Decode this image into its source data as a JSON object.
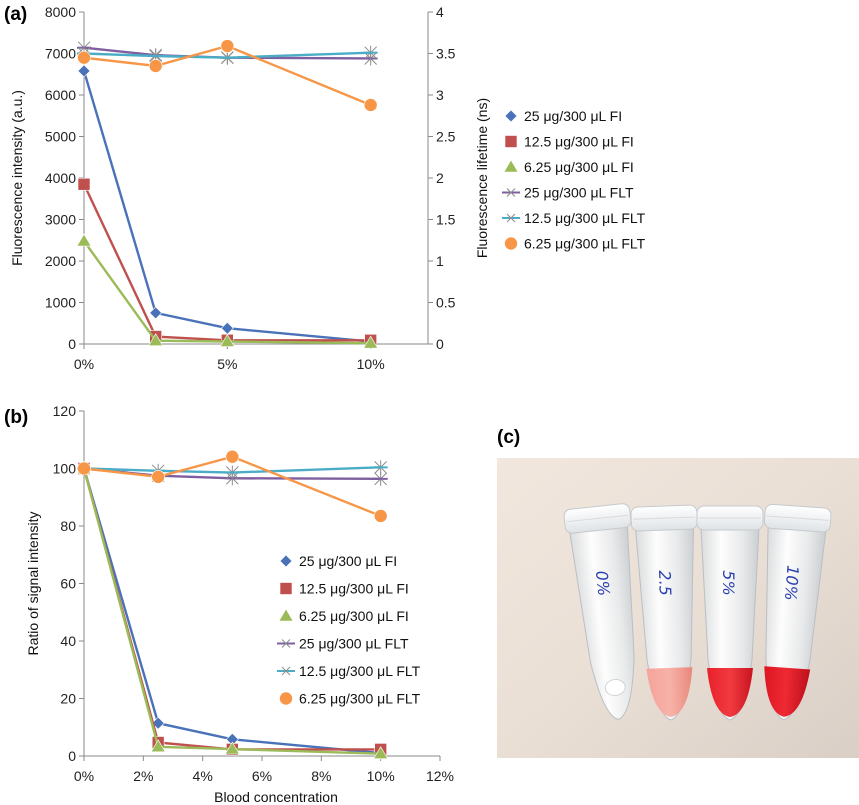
{
  "chart_data": [
    {
      "panel": "(a)",
      "type": "line",
      "x": [
        "0%",
        "2.5%",
        "5%",
        "10%"
      ],
      "x_values": [
        0,
        2.5,
        5,
        10
      ],
      "xticks": [
        "0%",
        "5%",
        "10%"
      ],
      "xtick_values": [
        0,
        5,
        10
      ],
      "xlim": [
        0,
        12
      ],
      "ylabel": "Fluorescence intensity (a.u.)",
      "ylim": [
        0,
        8000
      ],
      "yticks": [
        "0",
        "1000",
        "2000",
        "3000",
        "4000",
        "5000",
        "6000",
        "7000",
        "8000"
      ],
      "y2label": "Fluorescence lifetime (ns)",
      "y2lim": [
        0,
        4
      ],
      "y2ticks": [
        "0",
        "0.5",
        "1",
        "1.5",
        "2",
        "2.5",
        "3",
        "3.5",
        "4"
      ],
      "legend_position": "right",
      "series": [
        {
          "name": "25 μg/300 μL FI",
          "axis": "left",
          "color": "#4a72b8",
          "marker": "diamond",
          "values": [
            6580,
            750,
            380,
            60
          ]
        },
        {
          "name": "12.5 μg/300 μL  FI",
          "axis": "left",
          "color": "#c0504d",
          "marker": "square",
          "values": [
            3850,
            180,
            90,
            90
          ]
        },
        {
          "name": "6.25 μg/300 μL  FI",
          "axis": "left",
          "color": "#9bbb59",
          "marker": "triangle",
          "values": [
            2480,
            80,
            60,
            20
          ]
        },
        {
          "name": "25 μg/300 μL FLT",
          "axis": "right",
          "color": "#7f5f9f",
          "marker": "star",
          "values": [
            3.57,
            3.48,
            3.45,
            3.44
          ]
        },
        {
          "name": "12.5 μg/300 μL FLT",
          "axis": "right",
          "color": "#4bacc6",
          "marker": "star",
          "values": [
            3.5,
            3.47,
            3.45,
            3.51
          ]
        },
        {
          "name": "6.25 μg/300 μL FLT",
          "axis": "right",
          "color": "#f79646",
          "marker": "circle",
          "values": [
            3.45,
            3.35,
            3.59,
            2.88
          ]
        }
      ]
    },
    {
      "panel": "(b)",
      "type": "line",
      "x_values": [
        0,
        2.5,
        5,
        10
      ],
      "xlabel": "Blood concentration",
      "xticks": [
        "0%",
        "2%",
        "4%",
        "6%",
        "8%",
        "10%",
        "12%"
      ],
      "xtick_values": [
        0,
        2,
        4,
        6,
        8,
        10,
        12
      ],
      "xlim": [
        0,
        12
      ],
      "ylabel": "Ratio of signal intensity",
      "ylim": [
        0,
        120
      ],
      "yticks": [
        "0",
        "20",
        "40",
        "60",
        "80",
        "100",
        "120"
      ],
      "legend_position": "center-right",
      "series": [
        {
          "name": "25 μg/300 μL FI",
          "color": "#4a72b8",
          "marker": "diamond",
          "values": [
            100,
            11.4,
            5.8,
            1.0
          ]
        },
        {
          "name": "12.5 μg/300 μL FI",
          "color": "#c0504d",
          "marker": "square",
          "values": [
            100,
            4.7,
            2.3,
            2.3
          ]
        },
        {
          "name": "6.25 μg/300 μL FI",
          "color": "#9bbb59",
          "marker": "triangle",
          "values": [
            100,
            3.2,
            2.4,
            0.8
          ]
        },
        {
          "name": "25 μg/300 μL FLT",
          "color": "#7f5f9f",
          "marker": "star",
          "values": [
            100,
            97.5,
            96.6,
            96.4
          ]
        },
        {
          "name": "12.5 μg/300 μL FLT",
          "color": "#4bacc6",
          "marker": "star",
          "values": [
            100,
            99.2,
            98.6,
            100.4
          ]
        },
        {
          "name": "6.25 μg/300 μL FLT",
          "color": "#f79646",
          "marker": "circle",
          "values": [
            100,
            97.1,
            104.1,
            83.5
          ]
        }
      ]
    }
  ],
  "photo": {
    "panel": "(c)",
    "tube_labels": [
      "0%",
      "2.5",
      "5%",
      "10%"
    ]
  }
}
